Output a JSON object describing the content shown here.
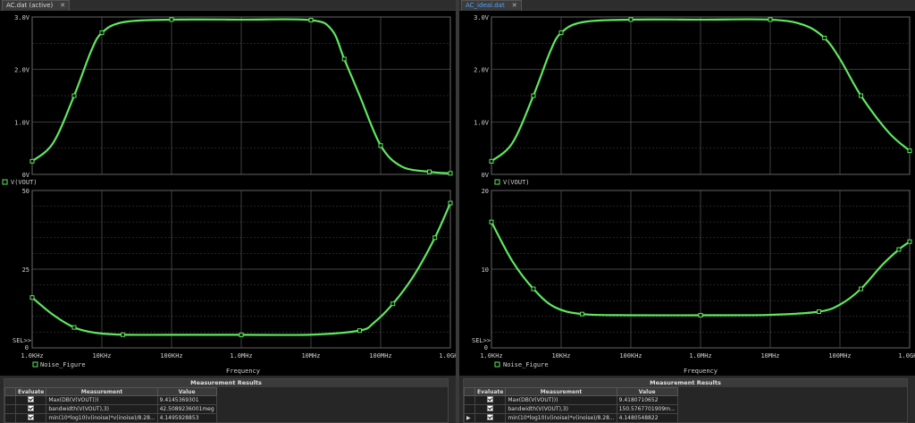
{
  "left": {
    "tab_label": "AC.dat (active)",
    "tab_close": "✕",
    "upper_yticks": [
      "3.0V",
      "2.0V",
      "1.0V",
      "0V"
    ],
    "upper_legend": "V(VOUT)",
    "lower_yticks": [
      "50",
      "25"
    ],
    "lower_zero": "0",
    "lower_sel": "SEL>>",
    "lower_legend": "Noise_Figure",
    "xticks": [
      "1.0KHz",
      "10KHz",
      "100KHz",
      "1.0MHz",
      "10MHz",
      "100MHz",
      "1.0GHz"
    ],
    "xlabel": "Frequency",
    "meas_title": "Measurement Results",
    "headers": [
      "Evaluate",
      "Measurement",
      "Value"
    ],
    "rows": [
      {
        "measurement": "Max(DB(V(VOUT)))",
        "value": "9.4145369301"
      },
      {
        "measurement": "bandwidth(V(VOUT),3)",
        "value": "42.5089236001meg"
      },
      {
        "measurement": "min(10*log10(v(inoise)*v(inoise)/8.28...",
        "value": "4.1495928853"
      }
    ]
  },
  "right": {
    "tab_label": "AC_ideal.dat",
    "tab_close": "✕",
    "upper_yticks": [
      "3.0V",
      "2.0V",
      "1.0V",
      "0V"
    ],
    "upper_legend": "V(VOUT)",
    "lower_yticks": [
      "20",
      "10"
    ],
    "lower_zero": "0",
    "lower_sel": "SEL>>",
    "lower_legend": "Noise_Figure",
    "xticks": [
      "1.0KHz",
      "10KHz",
      "100KHz",
      "1.0MHz",
      "10MHz",
      "100MHz",
      "1.0GHz"
    ],
    "xlabel": "Frequency",
    "meas_title": "Measurement Results",
    "headers": [
      "Evaluate",
      "Measurement",
      "Value"
    ],
    "rows": [
      {
        "measurement": "Max(DB(V(VOUT)))",
        "value": "9.4180710652"
      },
      {
        "measurement": "bandwidth(V(VOUT),3)",
        "value": "150.5767701909m..."
      },
      {
        "measurement": "min(10*log10(v(inoise)*v(inoise)/8.28...",
        "value": "4.1480548822"
      }
    ]
  },
  "colors": {
    "trace": "#5fe85f",
    "grid": "#5a5a5a",
    "background": "#000000",
    "text": "#d0d0d0"
  },
  "chart_data": [
    {
      "type": "line",
      "name": "left-vout",
      "x_unit": "Hz",
      "x_scale": "log",
      "xlim": [
        1000,
        1000000000
      ],
      "ylim": [
        0,
        3
      ],
      "ylabel": "",
      "series": [
        {
          "name": "V(VOUT)",
          "x": [
            1000,
            2000,
            4000,
            7000,
            10000,
            20000,
            100000,
            1000000,
            10000000,
            20000000,
            30000000,
            50000000,
            100000000,
            200000000,
            500000000,
            1000000000
          ],
          "y": [
            0.25,
            0.6,
            1.5,
            2.35,
            2.7,
            2.9,
            2.95,
            2.95,
            2.94,
            2.75,
            2.2,
            1.5,
            0.55,
            0.15,
            0.05,
            0.02
          ]
        }
      ]
    },
    {
      "type": "line",
      "name": "left-noise",
      "x_unit": "Hz",
      "x_scale": "log",
      "xlim": [
        1000,
        1000000000
      ],
      "ylim": [
        0,
        50
      ],
      "ylabel": "",
      "series": [
        {
          "name": "Noise_Figure",
          "x": [
            1000,
            2000,
            4000,
            8000,
            20000,
            100000,
            1000000,
            10000000,
            50000000,
            80000000,
            150000000,
            300000000,
            600000000,
            1000000000
          ],
          "y": [
            16,
            10.5,
            6.5,
            4.8,
            4.2,
            4.15,
            4.15,
            4.2,
            5.5,
            8,
            14,
            23,
            35,
            46
          ]
        }
      ]
    },
    {
      "type": "line",
      "name": "right-vout",
      "x_unit": "Hz",
      "x_scale": "log",
      "xlim": [
        1000,
        1000000000
      ],
      "ylim": [
        0,
        3
      ],
      "ylabel": "",
      "series": [
        {
          "name": "V(VOUT)",
          "x": [
            1000,
            2000,
            4000,
            7000,
            10000,
            20000,
            100000,
            1000000,
            10000000,
            30000000,
            60000000,
            100000000,
            200000000,
            500000000,
            1000000000
          ],
          "y": [
            0.25,
            0.6,
            1.5,
            2.35,
            2.7,
            2.9,
            2.95,
            2.95,
            2.95,
            2.85,
            2.6,
            2.2,
            1.5,
            0.8,
            0.45
          ]
        }
      ]
    },
    {
      "type": "line",
      "name": "right-noise",
      "x_unit": "Hz",
      "x_scale": "log",
      "xlim": [
        1000,
        1000000000
      ],
      "ylim": [
        0,
        20
      ],
      "ylabel": "",
      "series": [
        {
          "name": "Noise_Figure",
          "x": [
            1000,
            2000,
            4000,
            8000,
            20000,
            100000,
            1000000,
            10000000,
            50000000,
            100000000,
            200000000,
            400000000,
            700000000,
            1000000000
          ],
          "y": [
            16,
            11,
            7.5,
            5.2,
            4.3,
            4.15,
            4.15,
            4.2,
            4.6,
            5.5,
            7.5,
            10.5,
            12.5,
            13.5
          ]
        }
      ]
    }
  ]
}
